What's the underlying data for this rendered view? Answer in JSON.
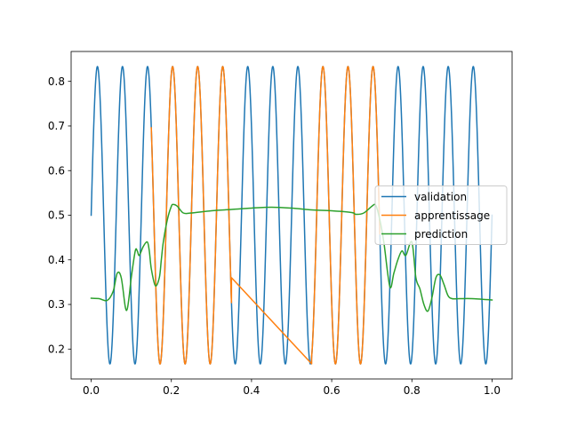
{
  "chart_data": {
    "type": "line",
    "title": "",
    "xlabel": "",
    "ylabel": "",
    "xlim": [
      -0.05,
      1.05
    ],
    "ylim": [
      0.133,
      0.867
    ],
    "xticks": [
      0.0,
      0.2,
      0.4,
      0.6,
      0.8,
      1.0
    ],
    "yticks": [
      0.2,
      0.3,
      0.4,
      0.5,
      0.6,
      0.7,
      0.8
    ],
    "xtick_labels": [
      "0.0",
      "0.2",
      "0.4",
      "0.6",
      "0.8",
      "1.0"
    ],
    "ytick_labels": [
      "0.2",
      "0.3",
      "0.4",
      "0.5",
      "0.6",
      "0.7",
      "0.8"
    ],
    "grid": false,
    "legend": "center-right",
    "series": [
      {
        "name": "validation",
        "color": "#1f77b4",
        "function": "0.5 + (1/3)*sin(2*pi*16*x)",
        "x_range": [
          0.0,
          1.0
        ],
        "samples": 1601
      },
      {
        "name": "apprentissage",
        "color": "#ff7f0e",
        "segments": [
          {
            "x_range": [
              0.15,
              0.35
            ],
            "function": "0.5 + (1/3)*sin(2*pi*16*x)"
          },
          {
            "points": [
              [
                0.35,
                0.36
              ],
              [
                0.55,
                0.167
              ]
            ]
          },
          {
            "x_range": [
              0.55,
              0.72
            ],
            "function": "0.5 + (1/3)*sin(2*pi*16*x)"
          }
        ]
      },
      {
        "name": "prediction",
        "color": "#2ca02c",
        "x": [
          0.0,
          0.02,
          0.04,
          0.055,
          0.065,
          0.075,
          0.085,
          0.09,
          0.095,
          0.1,
          0.11,
          0.115,
          0.12,
          0.13,
          0.14,
          0.145,
          0.15,
          0.16,
          0.17,
          0.175,
          0.18,
          0.19,
          0.2,
          0.205,
          0.215,
          0.23,
          0.25,
          0.3,
          0.35,
          0.4,
          0.45,
          0.5,
          0.55,
          0.6,
          0.65,
          0.66,
          0.68,
          0.7,
          0.71,
          0.72,
          0.73,
          0.745,
          0.755,
          0.765,
          0.775,
          0.785,
          0.8,
          0.81,
          0.82,
          0.83,
          0.84,
          0.85,
          0.86,
          0.87,
          0.88,
          0.89,
          0.9,
          0.92,
          0.95,
          1.0
        ],
        "y": [
          0.314,
          0.313,
          0.309,
          0.33,
          0.37,
          0.36,
          0.295,
          0.29,
          0.32,
          0.36,
          0.42,
          0.42,
          0.41,
          0.43,
          0.44,
          0.42,
          0.38,
          0.342,
          0.36,
          0.4,
          0.44,
          0.49,
          0.52,
          0.524,
          0.52,
          0.505,
          0.505,
          0.51,
          0.513,
          0.516,
          0.518,
          0.516,
          0.512,
          0.51,
          0.506,
          0.502,
          0.505,
          0.52,
          0.522,
          0.49,
          0.44,
          0.34,
          0.37,
          0.4,
          0.42,
          0.41,
          0.44,
          0.36,
          0.335,
          0.3,
          0.285,
          0.315,
          0.36,
          0.366,
          0.345,
          0.32,
          0.313,
          0.313,
          0.313,
          0.31
        ]
      }
    ]
  }
}
